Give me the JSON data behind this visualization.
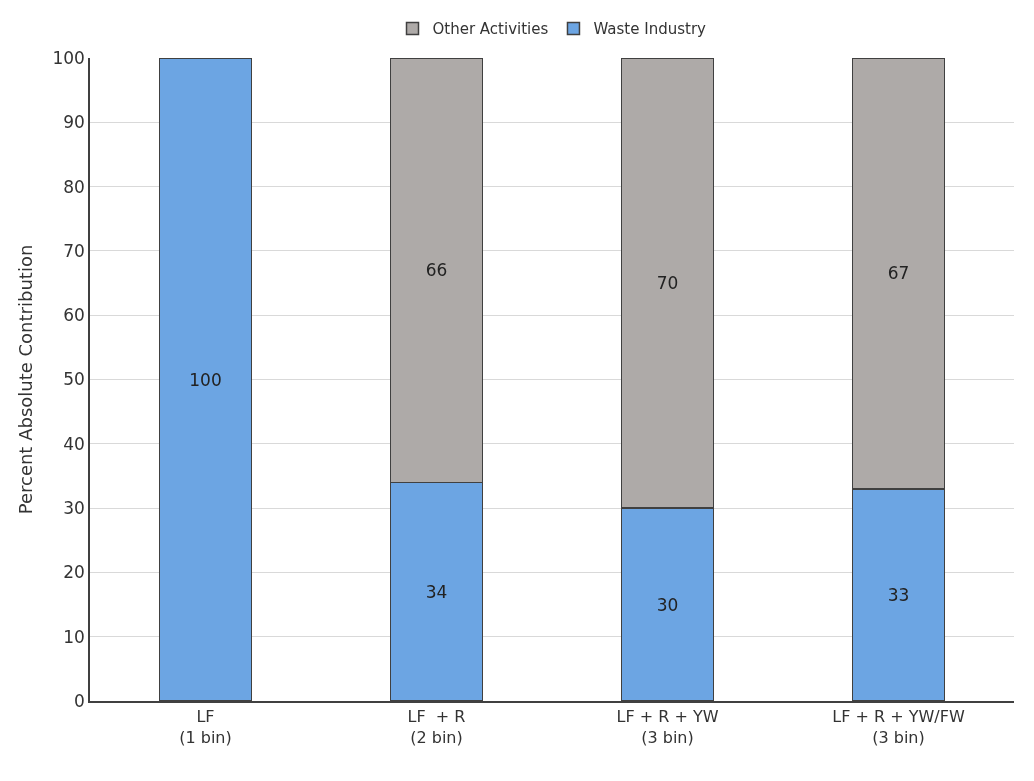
{
  "chart_data": {
    "type": "bar",
    "stacked": true,
    "ylabel": "Percent Absolute Contribution",
    "categories": [
      "LF\n(1 bin)",
      "LF  + R\n(2 bin)",
      "LF + R + YW\n(3 bin)",
      "LF + R + YW/FW\n(3 bin)"
    ],
    "series": [
      {
        "name": "Waste Industry",
        "color": "#6ca5e3",
        "values": [
          100,
          34,
          30,
          33
        ]
      },
      {
        "name": "Other Activities",
        "color": "#aeaaa8",
        "values": [
          null,
          66,
          70,
          67
        ]
      }
    ],
    "ylim": [
      0,
      100
    ],
    "yticks": [
      0,
      10,
      20,
      30,
      40,
      50,
      60,
      70,
      80,
      90,
      100
    ],
    "grid": "y",
    "legend": "top",
    "data_labels": true
  }
}
